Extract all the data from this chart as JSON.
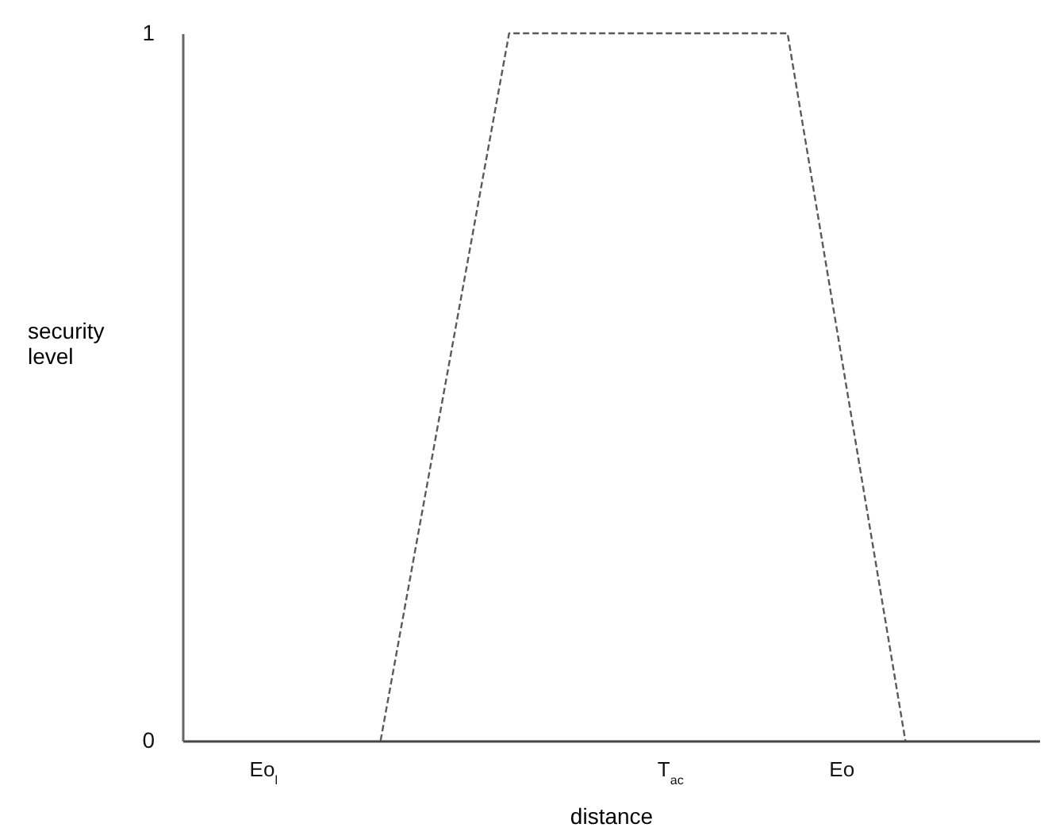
{
  "chart_data": {
    "type": "line",
    "xlabel": "distance",
    "ylabel": "security level",
    "categories": [
      null,
      null,
      null,
      null,
      null,
      null,
      null,
      "Eo$_{l}$",
      null,
      null,
      null,
      null,
      null,
      null,
      null,
      null,
      null,
      null,
      null,
      null,
      null,
      null,
      null,
      null,
      null,
      null,
      null,
      null,
      null,
      null,
      null,
      null,
      null,
      null,
      null,
      null,
      null,
      null,
      null,
      null,
      null,
      null,
      null,
      null,
      null,
      "T$_{ac}$",
      null,
      null,
      null,
      null,
      null,
      null,
      null,
      null,
      null,
      null,
      null,
      null,
      null,
      null,
      null,
      "Eo",
      null,
      null,
      null,
      null,
      null,
      null,
      null,
      null,
      null,
      null,
      null,
      null,
      null,
      null,
      null,
      null,
      null,
      null
    ],
    "series": [
      {
        "color": "#5a5a5a",
        "values": [
          null,
          null,
          null,
          null,
          null,
          null,
          null,
          null,
          null,
          null,
          null,
          null,
          null,
          null,
          null,
          null,
          null,
          null,
          0,
          null,
          null,
          null,
          null,
          null,
          null,
          null,
          null,
          null,
          null,
          null,
          1,
          null,
          null,
          null,
          null,
          null,
          null,
          null,
          null,
          null,
          null,
          null,
          null,
          null,
          null,
          null,
          null,
          null,
          null,
          null,
          null,
          null,
          null,
          null,
          null,
          null,
          1,
          null,
          null,
          null,
          null,
          null,
          null,
          null,
          null,
          null,
          null,
          0,
          null,
          null,
          null,
          null,
          null,
          null,
          null,
          null,
          null,
          null,
          null,
          null
        ]
      }
    ],
    "ylim": [
      0,
      1
    ],
    "yticks": [
      0,
      1
    ],
    "grid": false,
    "line_style": "dashed",
    "marker": "none"
  }
}
